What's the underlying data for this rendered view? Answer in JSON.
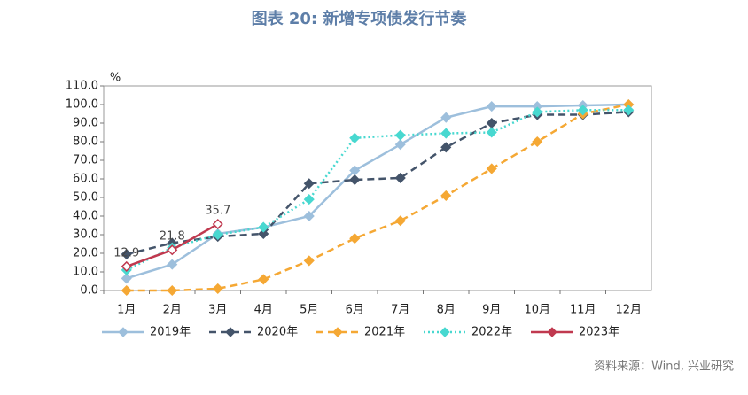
{
  "chart_data": {
    "type": "line",
    "title": "图表 20: 新增专项债发行节奏",
    "y_unit": "%",
    "source": "资料来源：Wind, 兴业研究",
    "categories": [
      "1月",
      "2月",
      "3月",
      "4月",
      "5月",
      "6月",
      "7月",
      "8月",
      "9月",
      "10月",
      "11月",
      "12月"
    ],
    "series": [
      {
        "name": "2019年",
        "color": "#9dbfdc",
        "line_style": "solid",
        "values": [
          6.5,
          14,
          30.5,
          34,
          40,
          64.5,
          78.5,
          93,
          99,
          99,
          99.5,
          100
        ]
      },
      {
        "name": "2020年",
        "color": "#44546a",
        "line_style": "dashed",
        "values": [
          19.5,
          25.5,
          29,
          30.5,
          57.5,
          59.5,
          60.5,
          77,
          90,
          94.5,
          94.5,
          96
        ]
      },
      {
        "name": "2021年",
        "color": "#f5a834",
        "line_style": "dashed",
        "values": [
          0,
          0,
          1,
          6,
          16,
          28,
          37.5,
          51,
          65.5,
          80,
          95,
          100
        ]
      },
      {
        "name": "2022年",
        "color": "#48d8d0",
        "line_style": "dotted",
        "values": [
          11,
          23,
          30,
          34,
          49,
          82,
          83.5,
          84.5,
          85,
          96,
          97,
          97
        ]
      },
      {
        "name": "2023年",
        "color": "#c0394f",
        "line_style": "solid",
        "show_labels": true,
        "values": [
          12.9,
          21.8,
          35.7,
          null,
          null,
          null,
          null,
          null,
          null,
          null,
          null,
          null
        ]
      }
    ],
    "ylim": [
      0,
      110
    ],
    "yticks": [
      {
        "value": 0,
        "label": "0.0"
      },
      {
        "value": 10,
        "label": "10.0"
      },
      {
        "value": 20,
        "label": "20.0"
      },
      {
        "value": 30,
        "label": "30.0"
      },
      {
        "value": 40,
        "label": "40.0"
      },
      {
        "value": 50,
        "label": "50.0"
      },
      {
        "value": 60,
        "label": "60.0"
      },
      {
        "value": 70,
        "label": "70.0"
      },
      {
        "value": 80,
        "label": "80.0"
      },
      {
        "value": 90,
        "label": "90.0"
      },
      {
        "value": 100,
        "label": "100.0"
      },
      {
        "value": 110,
        "label": "110.0"
      }
    ],
    "grid": false,
    "legend": "bottom"
  }
}
